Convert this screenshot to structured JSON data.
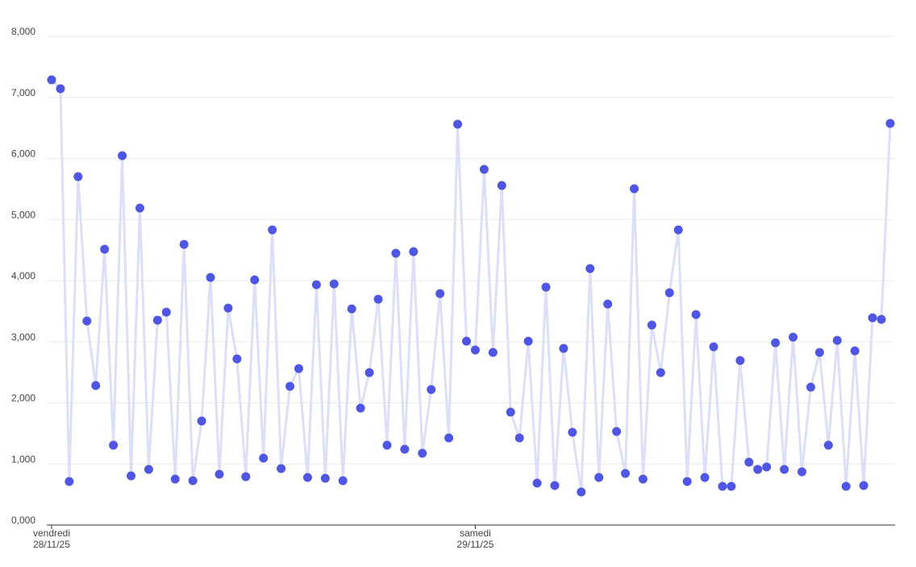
{
  "chart_data": {
    "type": "line",
    "categories": [
      "vendredi 28/11/25",
      null,
      null,
      null,
      null,
      null,
      null,
      null,
      null,
      null,
      null,
      null,
      null,
      null,
      null,
      null,
      null,
      null,
      null,
      null,
      null,
      null,
      null,
      null,
      null,
      null,
      null,
      null,
      null,
      null,
      null,
      null,
      null,
      null,
      null,
      null,
      null,
      null,
      null,
      null,
      null,
      null,
      null,
      null,
      null,
      null,
      null,
      null,
      "samedi 29/11/25",
      null,
      null,
      null,
      null,
      null,
      null,
      null,
      null,
      null,
      null,
      null,
      null,
      null,
      null,
      null,
      null,
      null,
      null,
      null,
      null,
      null,
      null,
      null,
      null,
      null,
      null,
      null,
      null,
      null,
      null,
      null,
      null,
      null,
      null,
      null,
      null,
      null,
      null,
      null,
      null,
      null,
      null,
      null,
      null,
      null,
      null,
      null
    ],
    "series": [
      {
        "color": "#4f56e3",
        "line_color": "#dcdff5",
        "values": [
          7287,
          7142,
          713,
          5703,
          3340,
          2284,
          4515,
          1307,
          6046,
          805,
          5188,
          911,
          3353,
          3485,
          752,
          4594,
          726,
          1703,
          4053,
          832,
          3551,
          2719,
          792,
          4013,
          1096,
          4832,
          924,
          2271,
          2561,
          779,
          3934,
          766,
          3947,
          726,
          3538,
          1914,
          2495,
          3696,
          1307,
          4449,
          1241,
          4475,
          1175,
          2218,
          3789,
          1426,
          6561,
          3010,
          2865,
          5822,
          2825,
          5558,
          1848,
          1426,
          3010,
          686,
          3894,
          647,
          2891,
          1518,
          541,
          4198,
          779,
          3617,
          1531,
          845,
          5505,
          752,
          3274,
          2495,
          3802,
          4832,
          713,
          3446,
          779,
          2917,
          634,
          634,
          2693,
          1030,
          911,
          950,
          2983,
          911,
          3076,
          871,
          2257,
          2825,
          1307,
          3023,
          634,
          2851,
          647,
          3393,
          3366,
          6574
        ]
      }
    ],
    "ylim": [
      0,
      8000
    ],
    "yticks": [
      {
        "value": 0,
        "label": "0,000"
      },
      {
        "value": 1000,
        "label": "1,000"
      },
      {
        "value": 2000,
        "label": "2,000"
      },
      {
        "value": 3000,
        "label": "3,000"
      },
      {
        "value": 4000,
        "label": "4,000"
      },
      {
        "value": 5000,
        "label": "5,000"
      },
      {
        "value": 6000,
        "label": "6,000"
      },
      {
        "value": 7000,
        "label": "7,000"
      },
      {
        "value": 8000,
        "label": "8,000"
      }
    ],
    "grid": true
  }
}
